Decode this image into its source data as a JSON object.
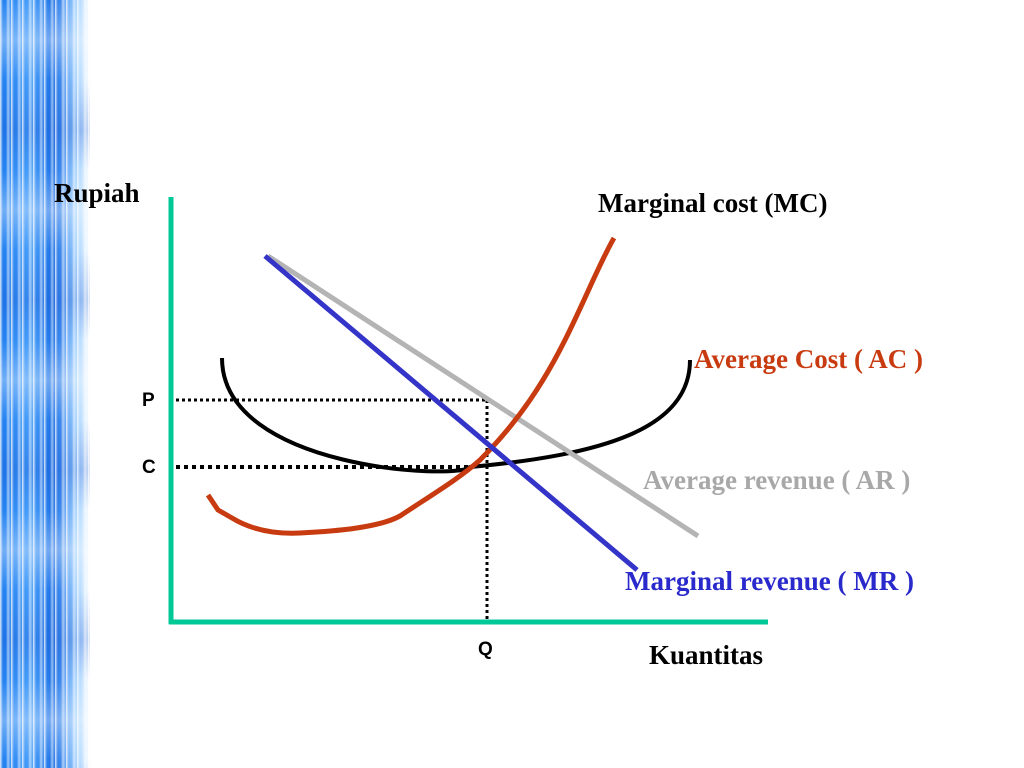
{
  "axes": {
    "y_label": "Rupiah",
    "x_label": "Kuantitas",
    "color": "#00c896"
  },
  "markers": {
    "p": "P",
    "c": "C",
    "q": "Q"
  },
  "curves": {
    "mc": {
      "label": "Marginal cost (MC)",
      "color": "#c83a10",
      "label_color": "#000000"
    },
    "ac": {
      "label": "Average Cost ( AC )",
      "color": "#000000",
      "label_color": "#c83a10"
    },
    "ar": {
      "label": "Average revenue ( AR )",
      "color": "#b4b4b4",
      "label_color": "#a8a8a8"
    },
    "mr": {
      "label": "Marginal revenue ( MR )",
      "color": "#3434c8",
      "label_color": "#2a2acc"
    }
  }
}
